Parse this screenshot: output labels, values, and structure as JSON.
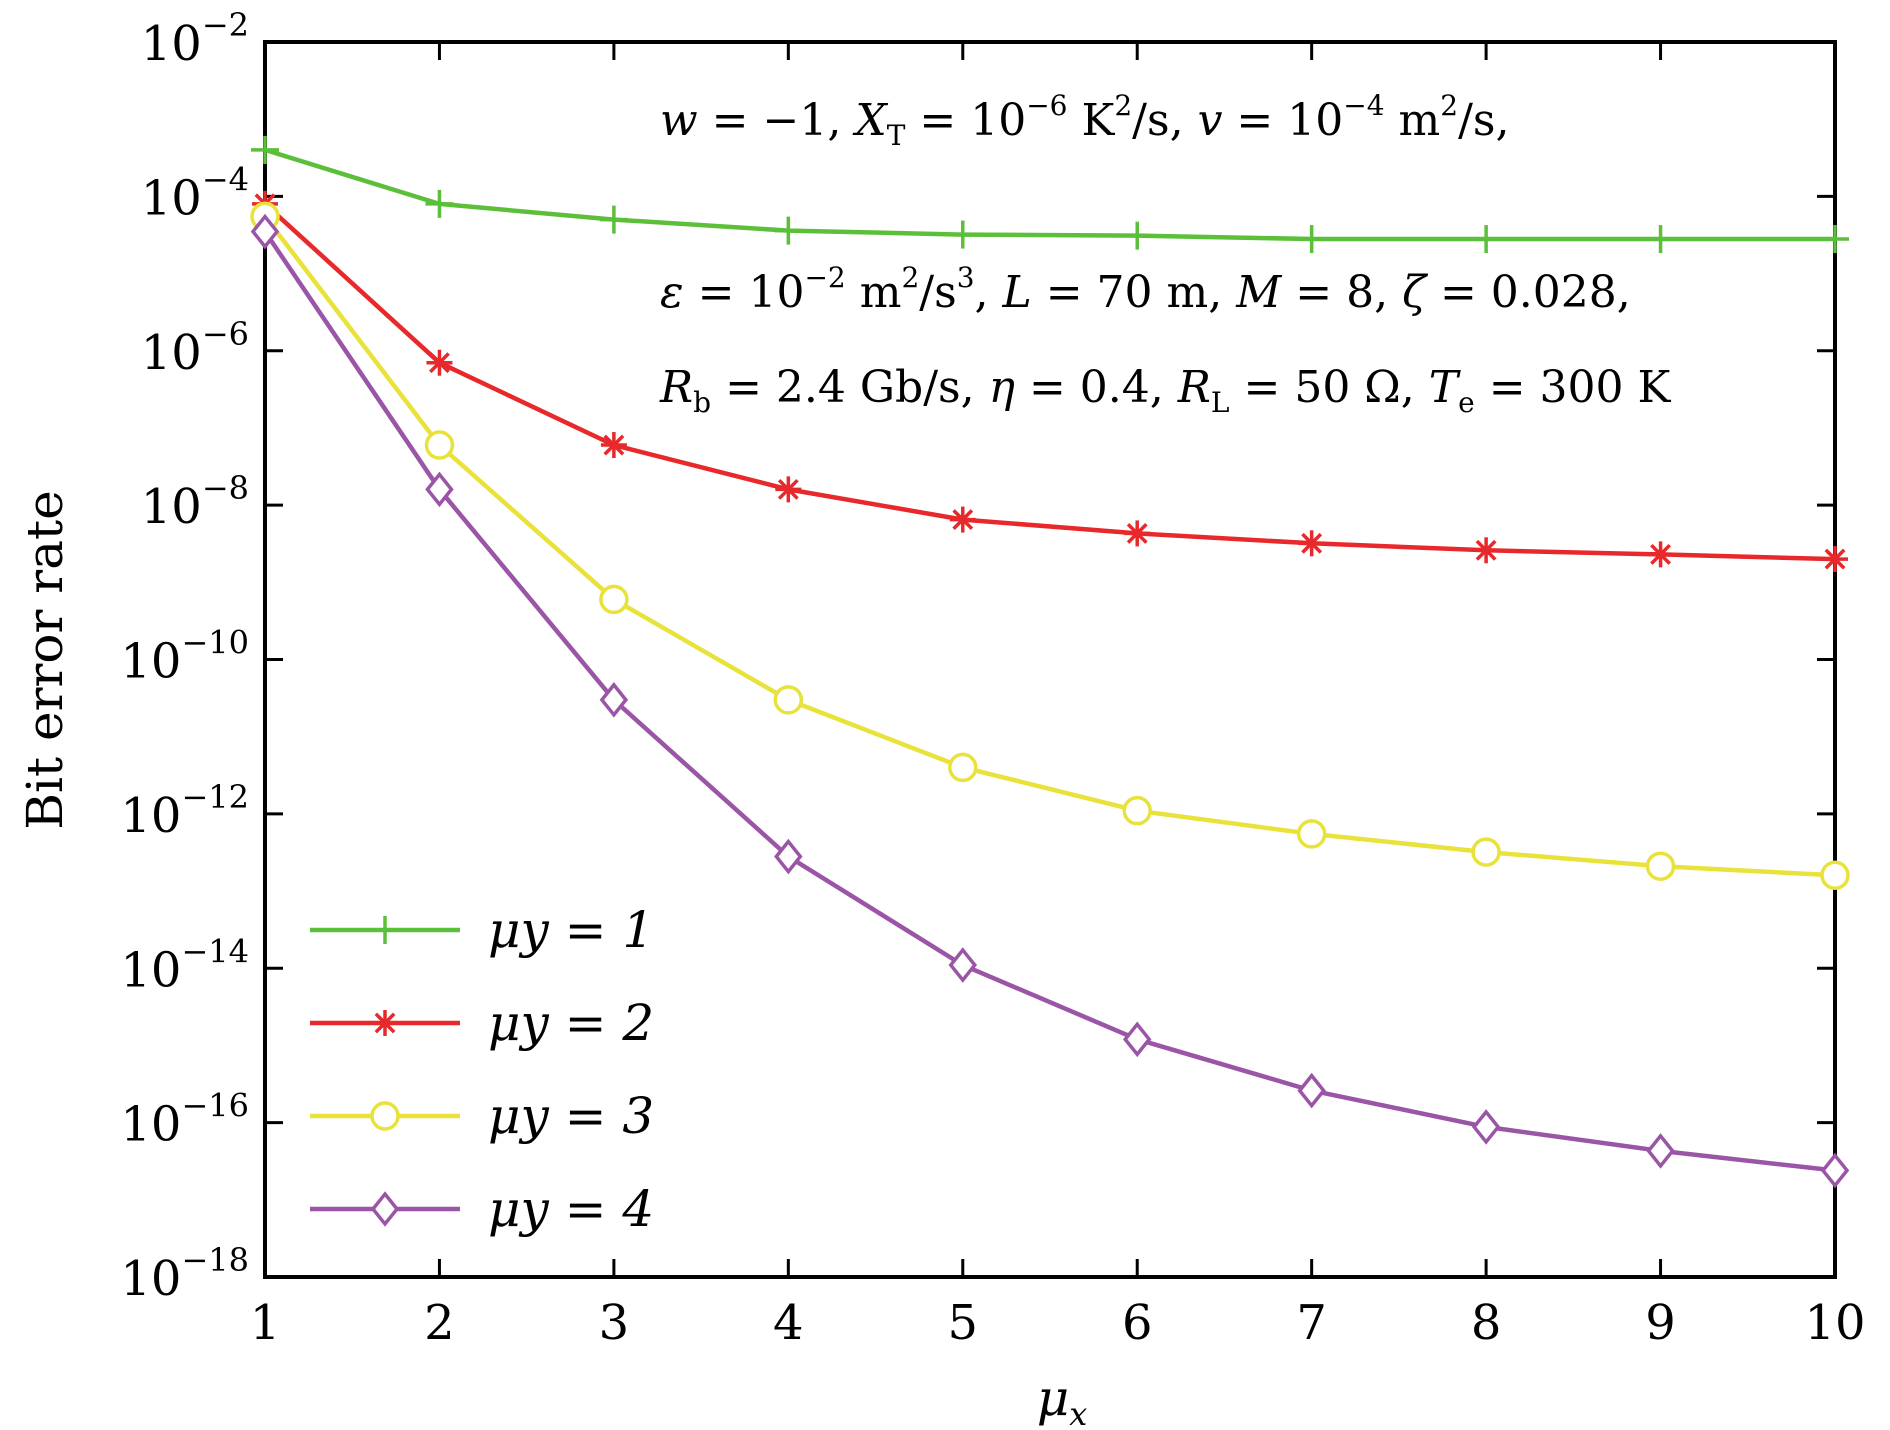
{
  "chart_data": {
    "type": "line",
    "title": "",
    "xlabel": "μx",
    "ylabel": "Bit error rate",
    "xlim": [
      1,
      10
    ],
    "ylim": [
      1e-18,
      0.01
    ],
    "yscale": "log",
    "grid": false,
    "legend_position": "bottom-left",
    "x": [
      1,
      2,
      3,
      4,
      5,
      6,
      7,
      8,
      9,
      10
    ],
    "x_ticks": [
      "1",
      "2",
      "3",
      "4",
      "5",
      "6",
      "7",
      "8",
      "9",
      "10"
    ],
    "y_ticks": [
      {
        "base": "10",
        "exp": "−2",
        "value": 0.01
      },
      {
        "base": "10",
        "exp": "−4",
        "value": 0.0001
      },
      {
        "base": "10",
        "exp": "−6",
        "value": 1e-06
      },
      {
        "base": "10",
        "exp": "−8",
        "value": 1e-08
      },
      {
        "base": "10",
        "exp": "−10",
        "value": 1e-10
      },
      {
        "base": "10",
        "exp": "−12",
        "value": 1e-12
      },
      {
        "base": "10",
        "exp": "−14",
        "value": 1e-14
      },
      {
        "base": "10",
        "exp": "−16",
        "value": 1e-16
      },
      {
        "base": "10",
        "exp": "−18",
        "value": 1e-18
      }
    ],
    "series": [
      {
        "name": "μy = 1",
        "color": "#5cbf3a",
        "marker": "plus",
        "values": [
          0.0004,
          8e-05,
          5e-05,
          3.6e-05,
          3.2e-05,
          3.1e-05,
          2.8e-05,
          2.8e-05,
          2.8e-05,
          2.8e-05
        ]
      },
      {
        "name": "μy = 2",
        "color": "#e8292b",
        "marker": "asterisk",
        "values": [
          8e-05,
          7e-07,
          6e-08,
          1.6e-08,
          6.5e-09,
          4.3e-09,
          3.2e-09,
          2.6e-09,
          2.3e-09,
          2e-09
        ]
      },
      {
        "name": "μy = 3",
        "color": "#e8e23a",
        "marker": "circle",
        "values": [
          5.5e-05,
          6e-08,
          6e-10,
          3e-11,
          4e-12,
          1.1e-12,
          5.5e-13,
          3.2e-13,
          2.1e-13,
          1.6e-13
        ]
      },
      {
        "name": "μy = 4",
        "color": "#9b55a6",
        "marker": "diamond",
        "values": [
          3.5e-05,
          1.6e-08,
          3e-11,
          2.8e-13,
          1.1e-14,
          1.2e-15,
          2.6e-16,
          8.8e-17,
          4.3e-17,
          2.4e-17
        ]
      }
    ],
    "annotations": {
      "line1": {
        "p1": "w",
        "p2": " = −1, ",
        "p3": "X",
        "p4": "T",
        "p5": " = 10",
        "p6": "−6",
        "p7": " K",
        "p8": "2",
        "p9": "/s, ",
        "p10": "v",
        "p11": " = 10",
        "p12": "−4",
        "p13": " m",
        "p14": "2",
        "p15": "/s,"
      },
      "line2": {
        "p1": "ε",
        "p2": " = 10",
        "p3": "−2",
        "p4": " m",
        "p5": "2",
        "p6": "/s",
        "p7": "3",
        "p8": ", ",
        "p9": "L",
        "p10": " = 70 m, ",
        "p11": "M",
        "p12": " = 8, ",
        "p13": "ζ",
        "p14": " = 0.028,"
      },
      "line3": {
        "p1": "R",
        "p2": "b",
        "p3": " = 2.4 Gb/s,  ",
        "p4": "η",
        "p5": " = 0.4,  ",
        "p6": "R",
        "p7": "L",
        "p8": " = 50 Ω, ",
        "p9": "T",
        "p10": "e",
        "p11": " = 300 K"
      }
    },
    "axis_label_parts": {
      "x_main": "μ",
      "x_sub": "x",
      "legend_main": "μ",
      "legend_sub": "y"
    }
  }
}
